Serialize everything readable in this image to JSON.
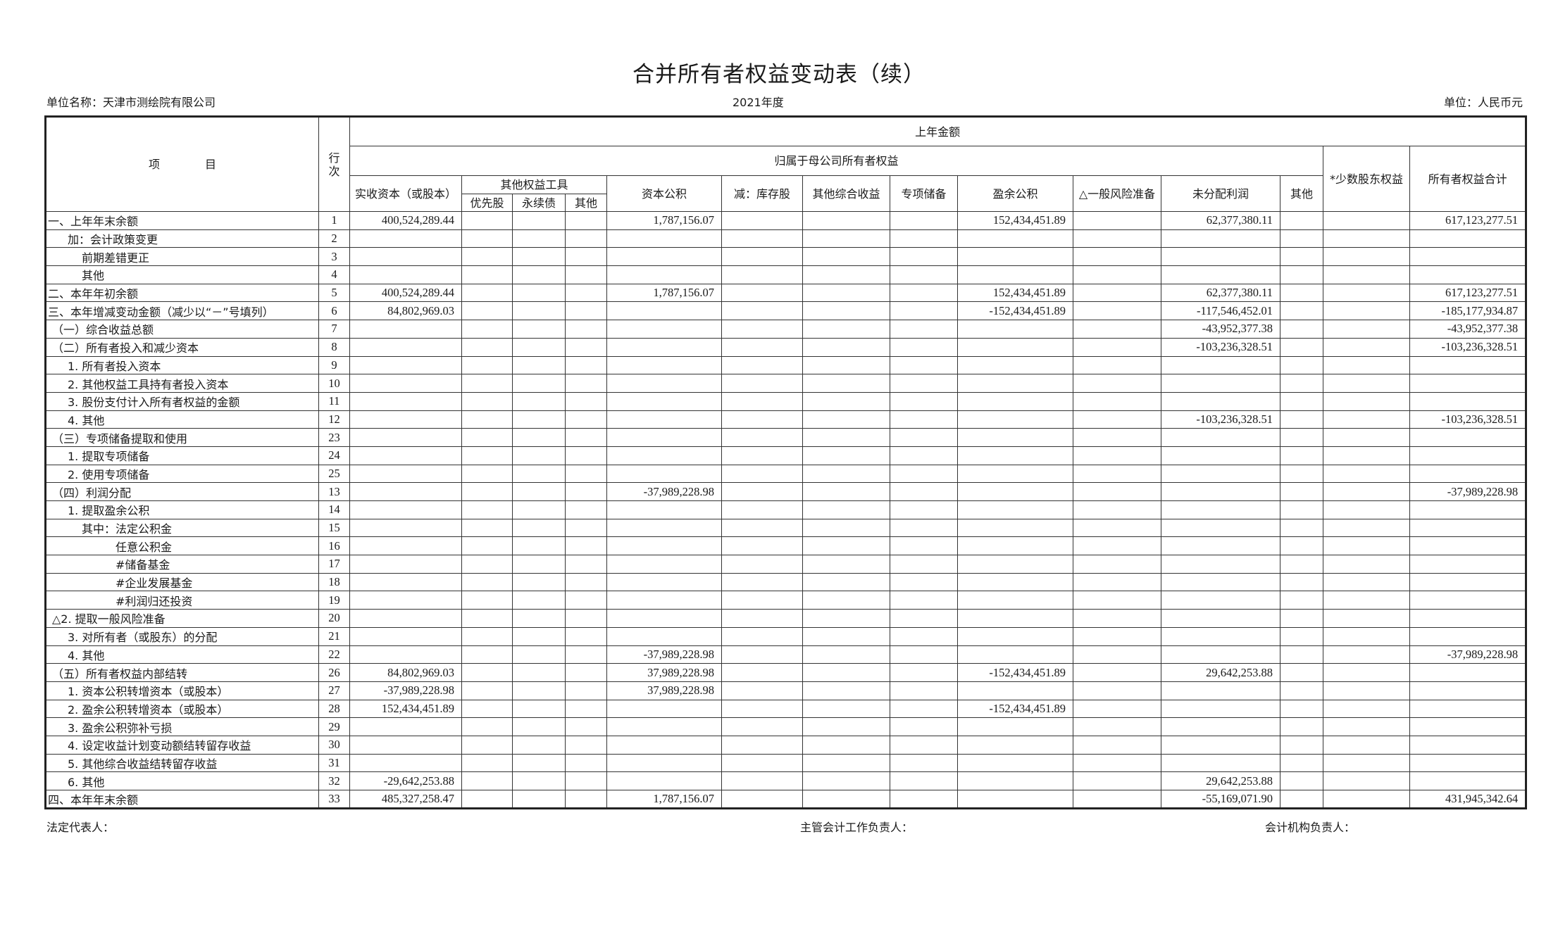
{
  "title": "合并所有者权益变动表（续）",
  "unit_name": "单位名称：天津市测绘院有限公司",
  "year": "2021年度",
  "currency": "单位：人民币元",
  "header": {
    "item": "项　　　　目",
    "row_no": "行次",
    "prior_year": "上年金额",
    "parent_equity": "归属于母公司所有者权益",
    "paid_in": "实收资本（或股本）",
    "other_instruments": "其他权益工具",
    "preferred": "优先股",
    "perpetual": "永续债",
    "other_inst": "其他",
    "capital_reserve": "资本公积",
    "treasury": "减：库存股",
    "oci": "其他综合收益",
    "special_reserve": "专项储备",
    "surplus_reserve": "盈余公积",
    "general_risk": "△一般风险准备",
    "retained": "未分配利润",
    "other": "其他",
    "minority": "*少数股东权益",
    "total": "所有者权益合计"
  },
  "rows": [
    {
      "label": "一、上年年末余额",
      "level": 0,
      "code": "1",
      "values": {
        "paid_in": "400,524,289.44",
        "capital_reserve": "1,787,156.07",
        "surplus_reserve": "152,434,451.89",
        "retained": "62,377,380.11",
        "total": "617,123,277.51"
      }
    },
    {
      "label": "加：会计政策变更",
      "level": 2,
      "code": "2",
      "values": {}
    },
    {
      "label": "前期差错更正",
      "level": 3,
      "code": "3",
      "values": {}
    },
    {
      "label": "其他",
      "level": 3,
      "code": "4",
      "values": {}
    },
    {
      "label": "二、本年年初余额",
      "level": 0,
      "code": "5",
      "values": {
        "paid_in": "400,524,289.44",
        "capital_reserve": "1,787,156.07",
        "surplus_reserve": "152,434,451.89",
        "retained": "62,377,380.11",
        "total": "617,123,277.51"
      }
    },
    {
      "label": "三、本年增减变动金额（减少以“－”号填列）",
      "level": 0,
      "code": "6",
      "values": {
        "paid_in": "84,802,969.03",
        "surplus_reserve": "-152,434,451.89",
        "retained": "-117,546,452.01",
        "total": "-185,177,934.87"
      }
    },
    {
      "label": "（一）综合收益总额",
      "level": 1,
      "code": "7",
      "values": {
        "retained": "-43,952,377.38",
        "total": "-43,952,377.38"
      }
    },
    {
      "label": "（二）所有者投入和减少资本",
      "level": 1,
      "code": "8",
      "values": {
        "retained": "-103,236,328.51",
        "total": "-103,236,328.51"
      }
    },
    {
      "label": "1. 所有者投入资本",
      "level": 2,
      "code": "9",
      "values": {}
    },
    {
      "label": "2. 其他权益工具持有者投入资本",
      "level": 2,
      "code": "10",
      "values": {}
    },
    {
      "label": "3. 股份支付计入所有者权益的金额",
      "level": 2,
      "code": "11",
      "values": {}
    },
    {
      "label": "4. 其他",
      "level": 2,
      "code": "12",
      "values": {
        "retained": "-103,236,328.51",
        "total": "-103,236,328.51"
      }
    },
    {
      "label": "（三）专项储备提取和使用",
      "level": 1,
      "code": "23",
      "values": {}
    },
    {
      "label": "1. 提取专项储备",
      "level": 2,
      "code": "24",
      "values": {}
    },
    {
      "label": "2. 使用专项储备",
      "level": 2,
      "code": "25",
      "values": {}
    },
    {
      "label": "（四）利润分配",
      "level": 1,
      "code": "13",
      "values": {
        "capital_reserve": "-37,989,228.98",
        "total": "-37,989,228.98"
      }
    },
    {
      "label": "1. 提取盈余公积",
      "level": 2,
      "code": "14",
      "values": {}
    },
    {
      "label": "其中：法定公积金",
      "level": 3,
      "code": "15",
      "values": {}
    },
    {
      "label": "任意公积金",
      "level": 4,
      "code": "16",
      "values": {}
    },
    {
      "label": "#储备基金",
      "level": 4,
      "code": "17",
      "values": {}
    },
    {
      "label": "#企业发展基金",
      "level": 4,
      "code": "18",
      "values": {}
    },
    {
      "label": "#利润归还投资",
      "level": 4,
      "code": "19",
      "values": {}
    },
    {
      "label": "△2. 提取一般风险准备",
      "level": 1,
      "code": "20",
      "values": {}
    },
    {
      "label": "3. 对所有者（或股东）的分配",
      "level": 2,
      "code": "21",
      "values": {}
    },
    {
      "label": "4. 其他",
      "level": 2,
      "code": "22",
      "values": {
        "capital_reserve": "-37,989,228.98",
        "total": "-37,989,228.98"
      }
    },
    {
      "label": "（五）所有者权益内部结转",
      "level": 1,
      "code": "26",
      "values": {
        "paid_in": "84,802,969.03",
        "capital_reserve": "37,989,228.98",
        "surplus_reserve": "-152,434,451.89",
        "retained": "29,642,253.88"
      }
    },
    {
      "label": "1. 资本公积转增资本（或股本）",
      "level": 2,
      "code": "27",
      "values": {
        "paid_in": "-37,989,228.98",
        "capital_reserve": "37,989,228.98"
      }
    },
    {
      "label": "2. 盈余公积转增资本（或股本）",
      "level": 2,
      "code": "28",
      "values": {
        "paid_in": "152,434,451.89",
        "surplus_reserve": "-152,434,451.89"
      }
    },
    {
      "label": "3. 盈余公积弥补亏损",
      "level": 2,
      "code": "29",
      "values": {}
    },
    {
      "label": "4. 设定收益计划变动额结转留存收益",
      "level": 2,
      "code": "30",
      "values": {}
    },
    {
      "label": "5. 其他综合收益结转留存收益",
      "level": 2,
      "code": "31",
      "values": {}
    },
    {
      "label": "6. 其他",
      "level": 2,
      "code": "32",
      "values": {
        "paid_in": "-29,642,253.88",
        "retained": "29,642,253.88"
      }
    },
    {
      "label": "四、本年年末余额",
      "level": 0,
      "code": "33",
      "values": {
        "paid_in": "485,327,258.47",
        "capital_reserve": "1,787,156.07",
        "retained": "-55,169,071.90",
        "total": "431,945,342.64"
      }
    }
  ],
  "footer": {
    "legal_rep": "法定代表人：",
    "accounting_head": "主管会计工作负责人：",
    "accounting_dept_head": "会计机构负责人："
  }
}
